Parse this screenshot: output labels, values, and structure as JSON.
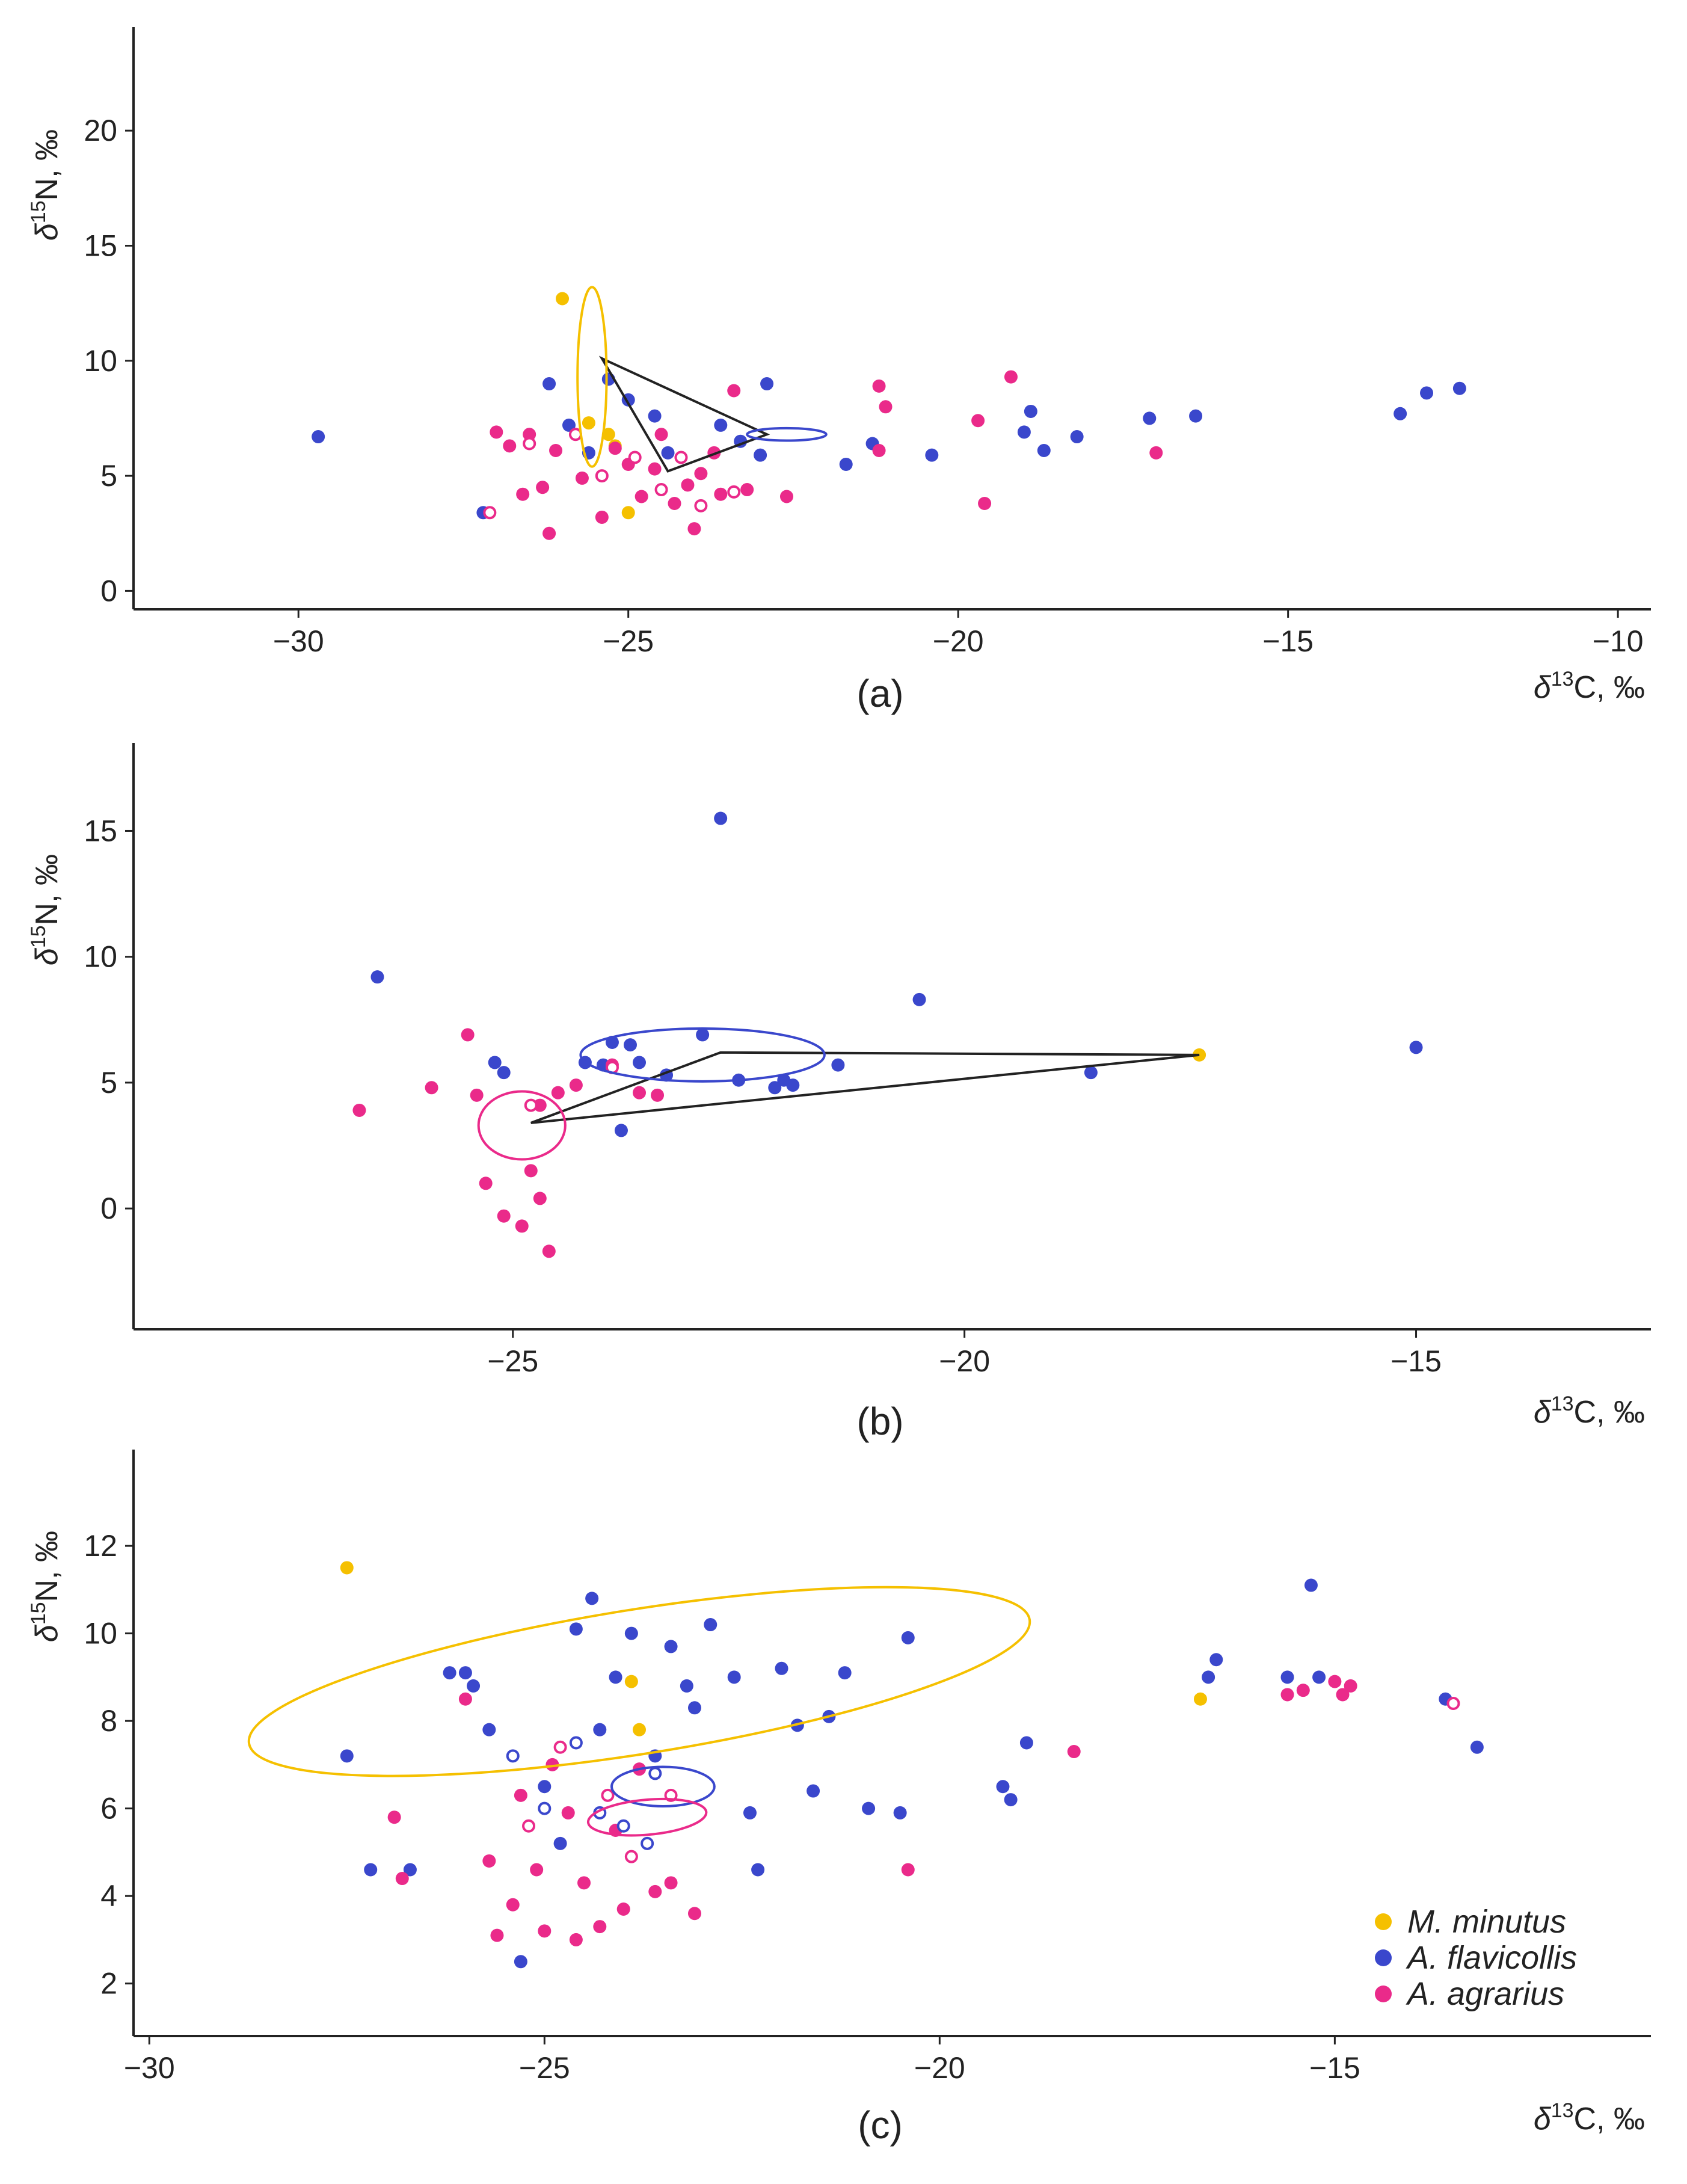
{
  "chart_data": [
    {
      "type": "scatter",
      "panel": "(a)",
      "xlabel": "δ13C, ‰",
      "ylabel": "δ15N, ‰",
      "xlim": [
        -32.5,
        -9.5
      ],
      "ylim": [
        -0.8,
        24.5
      ],
      "xticks": [
        -30,
        -25,
        -20,
        -15,
        -10
      ],
      "yticks": [
        0,
        5,
        10,
        15,
        20
      ],
      "tick_labels_x": [
        "−30",
        "−25",
        "−20",
        "−15",
        "−10"
      ],
      "tick_labels_y": [
        "0",
        "5",
        "10",
        "15",
        "20"
      ],
      "series": [
        {
          "name": "M. minutus",
          "color": "#f5c000",
          "points": [
            [
              -26.0,
              12.7
            ],
            [
              -25.6,
              7.3
            ],
            [
              -25.3,
              6.8
            ],
            [
              -25.2,
              6.3
            ],
            [
              -25.0,
              3.4
            ]
          ]
        },
        {
          "name": "A. flavicollis",
          "color": "#3a47cc",
          "points": [
            [
              -29.7,
              6.7
            ],
            [
              -27.2,
              3.4
            ],
            [
              -26.2,
              9.0
            ],
            [
              -25.9,
              7.2
            ],
            [
              -25.6,
              6.0
            ],
            [
              -25.3,
              9.2
            ],
            [
              -25.0,
              8.3
            ],
            [
              -24.6,
              7.6
            ],
            [
              -24.4,
              6.0
            ],
            [
              -23.6,
              7.2
            ],
            [
              -23.3,
              6.5
            ],
            [
              -23.0,
              5.9
            ],
            [
              -22.9,
              9.0
            ],
            [
              -21.7,
              5.5
            ],
            [
              -21.3,
              6.4
            ],
            [
              -20.4,
              5.9
            ],
            [
              -19.0,
              6.9
            ],
            [
              -18.9,
              7.8
            ],
            [
              -18.7,
              6.1
            ],
            [
              -18.2,
              6.7
            ],
            [
              -17.1,
              7.5
            ],
            [
              -16.4,
              7.6
            ],
            [
              -13.3,
              7.7
            ],
            [
              -12.9,
              8.6
            ],
            [
              -12.4,
              8.8
            ]
          ]
        },
        {
          "name": "A. agrarius",
          "color": "#ea2a8a",
          "points": [
            [
              -27.0,
              6.9
            ],
            [
              -26.8,
              6.3
            ],
            [
              -26.6,
              4.2
            ],
            [
              -26.5,
              6.8
            ],
            [
              -26.3,
              4.5
            ],
            [
              -26.2,
              2.5
            ],
            [
              -26.1,
              6.1
            ],
            [
              -25.7,
              4.9
            ],
            [
              -25.4,
              3.2
            ],
            [
              -25.2,
              6.2
            ],
            [
              -25.0,
              5.5
            ],
            [
              -24.8,
              4.1
            ],
            [
              -24.6,
              5.3
            ],
            [
              -24.5,
              6.8
            ],
            [
              -24.3,
              3.8
            ],
            [
              -24.1,
              4.6
            ],
            [
              -24.0,
              2.7
            ],
            [
              -23.9,
              5.1
            ],
            [
              -23.7,
              6.0
            ],
            [
              -23.6,
              4.2
            ],
            [
              -23.4,
              8.7
            ],
            [
              -23.2,
              4.4
            ],
            [
              -22.6,
              4.1
            ],
            [
              -21.2,
              8.9
            ],
            [
              -21.2,
              6.1
            ],
            [
              -21.1,
              8.0
            ],
            [
              -19.7,
              7.4
            ],
            [
              -19.6,
              3.8
            ],
            [
              -19.2,
              9.3
            ],
            [
              -17.0,
              6.0
            ]
          ]
        },
        {
          "name": "open-symbols",
          "color": "#ea2a8a",
          "hollow": true,
          "points": [
            [
              -27.1,
              3.4
            ],
            [
              -26.5,
              6.4
            ],
            [
              -25.8,
              6.8
            ],
            [
              -25.4,
              5.0
            ],
            [
              -24.9,
              5.8
            ],
            [
              -24.5,
              4.4
            ],
            [
              -24.2,
              5.8
            ],
            [
              -23.9,
              3.7
            ],
            [
              -23.4,
              4.3
            ]
          ]
        }
      ],
      "ellipses": [
        {
          "color": "#f5c000",
          "cx": -25.55,
          "cy": 9.3,
          "rx": 0.22,
          "ry": 3.9,
          "rot": 0
        },
        {
          "color": "#3a47cc",
          "cx": -22.6,
          "cy": 6.8,
          "rx": 0.6,
          "ry": 0.27,
          "rot": 0
        }
      ],
      "hull": {
        "color": "#222222",
        "points": [
          [
            -25.4,
            10.1
          ],
          [
            -22.9,
            6.8
          ],
          [
            -24.4,
            5.2
          ]
        ]
      }
    },
    {
      "type": "scatter",
      "panel": "(b)",
      "xlabel": "δ13C, ‰",
      "ylabel": "δ15N, ‰",
      "xlim": [
        -29.2,
        -12.4
      ],
      "ylim": [
        -4.8,
        18.5
      ],
      "xticks": [
        -25,
        -20,
        -15
      ],
      "yticks": [
        0,
        5,
        10,
        15
      ],
      "tick_labels_x": [
        "−25",
        "−20",
        "−15"
      ],
      "tick_labels_y": [
        "0",
        "5",
        "10",
        "15"
      ],
      "series": [
        {
          "name": "M. minutus",
          "color": "#f5c000",
          "points": [
            [
              -17.4,
              6.1
            ]
          ]
        },
        {
          "name": "A. flavicollis",
          "color": "#3a47cc",
          "points": [
            [
              -26.5,
              9.2
            ],
            [
              -25.2,
              5.8
            ],
            [
              -25.1,
              5.4
            ],
            [
              -24.2,
              5.8
            ],
            [
              -24.0,
              5.7
            ],
            [
              -23.9,
              6.6
            ],
            [
              -23.7,
              6.5
            ],
            [
              -23.6,
              5.8
            ],
            [
              -23.8,
              3.1
            ],
            [
              -23.3,
              5.3
            ],
            [
              -22.9,
              6.9
            ],
            [
              -22.7,
              15.5
            ],
            [
              -22.5,
              5.1
            ],
            [
              -22.1,
              4.8
            ],
            [
              -22.0,
              5.1
            ],
            [
              -21.9,
              4.9
            ],
            [
              -21.4,
              5.7
            ],
            [
              -20.5,
              8.3
            ],
            [
              -18.6,
              5.4
            ],
            [
              -15.0,
              6.4
            ]
          ]
        },
        {
          "name": "A. agrarius",
          "color": "#ea2a8a",
          "points": [
            [
              -26.7,
              3.9
            ],
            [
              -25.9,
              4.8
            ],
            [
              -25.5,
              6.9
            ],
            [
              -25.4,
              4.5
            ],
            [
              -25.3,
              1.0
            ],
            [
              -25.1,
              -0.3
            ],
            [
              -24.9,
              -0.7
            ],
            [
              -24.8,
              1.5
            ],
            [
              -24.7,
              0.4
            ],
            [
              -24.6,
              -1.7
            ],
            [
              -24.7,
              4.1
            ],
            [
              -24.5,
              4.6
            ],
            [
              -24.3,
              4.9
            ],
            [
              -23.9,
              5.7
            ],
            [
              -23.6,
              4.6
            ],
            [
              -23.4,
              4.5
            ]
          ]
        },
        {
          "name": "open-symbols",
          "color": "#ea2a8a",
          "hollow": true,
          "points": [
            [
              -24.8,
              4.1
            ],
            [
              -23.9,
              5.6
            ]
          ]
        }
      ],
      "ellipses": [
        {
          "color": "#3a47cc",
          "cx": -22.9,
          "cy": 6.1,
          "rx": 1.35,
          "ry": 1.05,
          "rot": 0
        },
        {
          "color": "#ea2a8a",
          "cx": -24.9,
          "cy": 3.3,
          "rx": 0.48,
          "ry": 1.35,
          "rot": 0
        }
      ],
      "hull": {
        "color": "#222222",
        "points": [
          [
            -24.8,
            3.4
          ],
          [
            -22.7,
            6.2
          ],
          [
            -17.4,
            6.1
          ]
        ]
      }
    },
    {
      "type": "scatter",
      "panel": "(c)",
      "xlabel": "δ13C, ‰",
      "ylabel": "δ15N, ‰",
      "xlim": [
        -30.2,
        -11.0
      ],
      "ylim": [
        0.8,
        14.2
      ],
      "xticks": [
        -30,
        -25,
        -20,
        -15
      ],
      "yticks": [
        2,
        4,
        6,
        8,
        10,
        12
      ],
      "tick_labels_x": [
        "−30",
        "−25",
        "−20",
        "−15"
      ],
      "tick_labels_y": [
        "2",
        "4",
        "6",
        "8",
        "10",
        "12"
      ],
      "series": [
        {
          "name": "M. minutus",
          "color": "#f5c000",
          "points": [
            [
              -27.5,
              11.5
            ],
            [
              -23.9,
              8.9
            ],
            [
              -23.8,
              7.8
            ],
            [
              -16.7,
              8.5
            ]
          ]
        },
        {
          "name": "A. flavicollis",
          "color": "#3a47cc",
          "points": [
            [
              -27.5,
              7.2
            ],
            [
              -27.2,
              4.6
            ],
            [
              -26.7,
              4.6
            ],
            [
              -26.2,
              9.1
            ],
            [
              -26.0,
              9.1
            ],
            [
              -25.9,
              8.8
            ],
            [
              -25.7,
              7.8
            ],
            [
              -25.3,
              2.5
            ],
            [
              -25.0,
              6.5
            ],
            [
              -24.8,
              5.2
            ],
            [
              -24.6,
              10.1
            ],
            [
              -24.4,
              10.8
            ],
            [
              -24.3,
              7.8
            ],
            [
              -24.1,
              9.0
            ],
            [
              -23.9,
              10.0
            ],
            [
              -23.6,
              7.2
            ],
            [
              -23.4,
              9.7
            ],
            [
              -23.2,
              8.8
            ],
            [
              -23.1,
              8.3
            ],
            [
              -22.9,
              10.2
            ],
            [
              -22.6,
              9.0
            ],
            [
              -22.4,
              5.9
            ],
            [
              -22.3,
              4.6
            ],
            [
              -22.0,
              9.2
            ],
            [
              -21.8,
              7.9
            ],
            [
              -21.6,
              6.4
            ],
            [
              -21.4,
              8.1
            ],
            [
              -21.2,
              9.1
            ],
            [
              -20.9,
              6.0
            ],
            [
              -20.5,
              5.9
            ],
            [
              -20.4,
              9.9
            ],
            [
              -19.2,
              6.5
            ],
            [
              -19.1,
              6.2
            ],
            [
              -18.9,
              7.5
            ],
            [
              -16.6,
              9.0
            ],
            [
              -16.5,
              9.4
            ],
            [
              -15.6,
              9.0
            ],
            [
              -15.3,
              11.1
            ],
            [
              -15.2,
              9.0
            ],
            [
              -13.6,
              8.5
            ],
            [
              -13.2,
              7.4
            ]
          ]
        },
        {
          "name": "A. agrarius",
          "color": "#ea2a8a",
          "points": [
            [
              -26.9,
              5.8
            ],
            [
              -26.8,
              4.4
            ],
            [
              -26.0,
              8.5
            ],
            [
              -25.7,
              4.8
            ],
            [
              -25.6,
              3.1
            ],
            [
              -25.4,
              3.8
            ],
            [
              -25.3,
              6.3
            ],
            [
              -25.1,
              4.6
            ],
            [
              -25.0,
              3.2
            ],
            [
              -24.9,
              7.0
            ],
            [
              -24.7,
              5.9
            ],
            [
              -24.6,
              3.0
            ],
            [
              -24.5,
              4.3
            ],
            [
              -24.3,
              3.3
            ],
            [
              -24.1,
              5.5
            ],
            [
              -24.0,
              3.7
            ],
            [
              -23.8,
              6.9
            ],
            [
              -23.6,
              4.1
            ],
            [
              -23.4,
              4.3
            ],
            [
              -23.1,
              3.6
            ],
            [
              -20.4,
              4.6
            ],
            [
              -18.3,
              7.3
            ],
            [
              -15.6,
              8.6
            ],
            [
              -15.4,
              8.7
            ],
            [
              -15.0,
              8.9
            ],
            [
              -14.9,
              8.6
            ],
            [
              -14.8,
              8.8
            ]
          ]
        },
        {
          "name": "open-symbols",
          "color": "#3a47cc",
          "hollow": true,
          "points": [
            [
              -25.4,
              7.2
            ],
            [
              -25.0,
              6.0
            ],
            [
              -24.6,
              7.5
            ],
            [
              -24.3,
              5.9
            ],
            [
              -24.0,
              5.6
            ],
            [
              -23.7,
              5.2
            ],
            [
              -23.6,
              6.8
            ]
          ]
        },
        {
          "name": "open-symbols-2",
          "color": "#ea2a8a",
          "hollow": true,
          "points": [
            [
              -25.2,
              5.6
            ],
            [
              -24.8,
              7.4
            ],
            [
              -24.2,
              6.3
            ],
            [
              -23.9,
              4.9
            ],
            [
              -23.4,
              6.3
            ],
            [
              -13.5,
              8.4
            ]
          ]
        }
      ],
      "ellipses": [
        {
          "color": "#f5c000",
          "cx": -23.8,
          "cy": 8.9,
          "rx": 5.0,
          "ry": 1.65,
          "rot": -9
        },
        {
          "color": "#3a47cc",
          "cx": -23.5,
          "cy": 6.5,
          "rx": 0.65,
          "ry": 0.45,
          "rot": 0
        },
        {
          "color": "#ea2a8a",
          "cx": -23.7,
          "cy": 5.8,
          "rx": 0.75,
          "ry": 0.4,
          "rot": -5
        }
      ],
      "legend": {
        "position": "bottom-right",
        "entries": [
          {
            "label": "M. minutus",
            "color": "#f5c000"
          },
          {
            "label": "A. flavicollis",
            "color": "#3a47cc"
          },
          {
            "label": "A. agrarius",
            "color": "#ea2a8a"
          }
        ]
      }
    }
  ]
}
